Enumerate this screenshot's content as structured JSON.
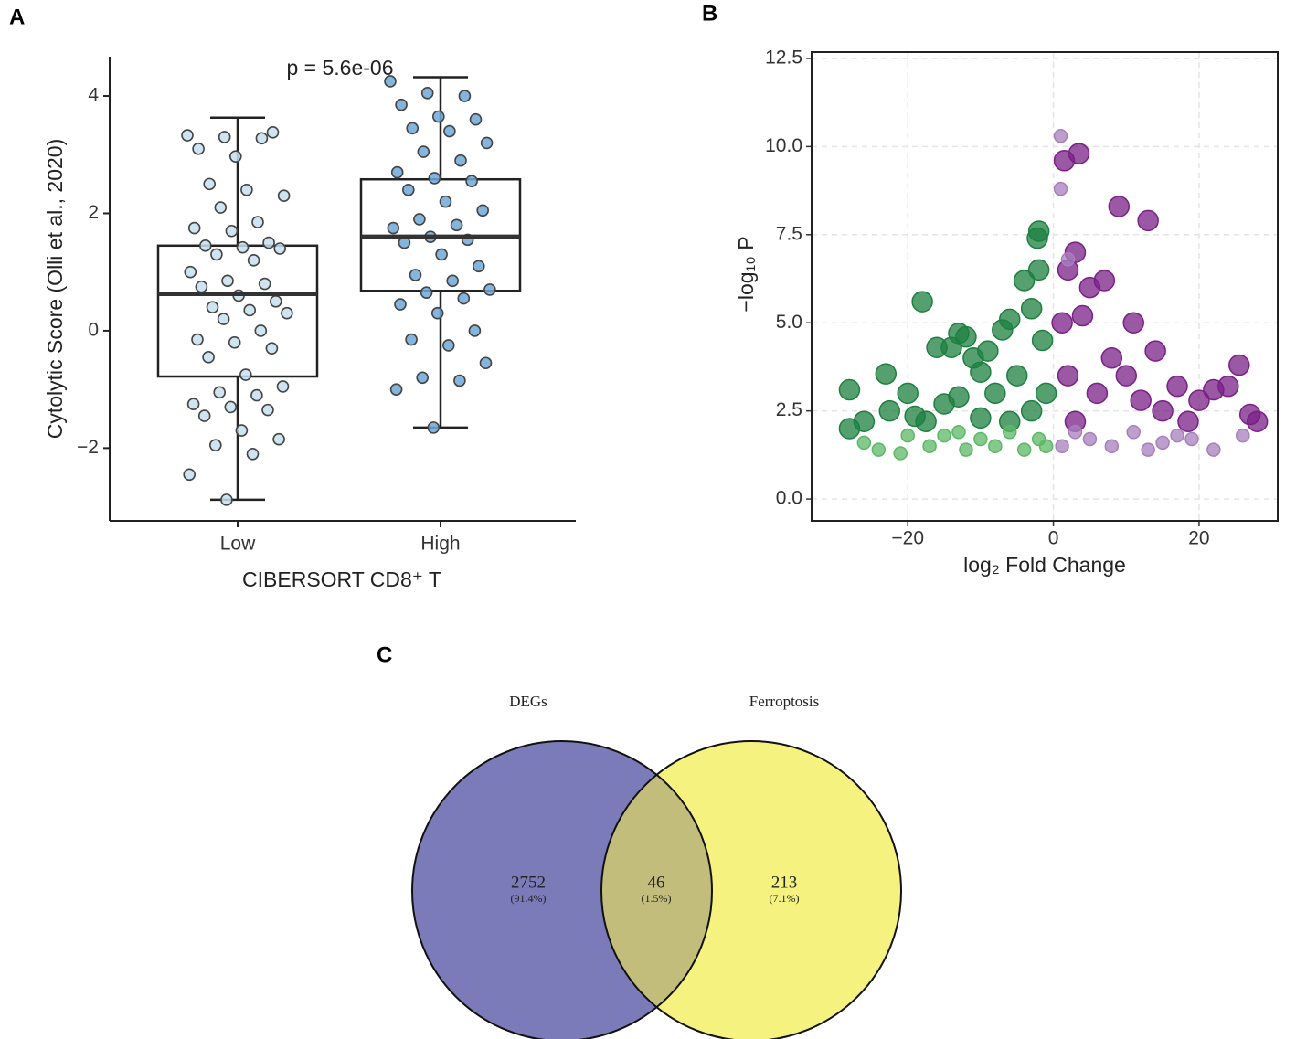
{
  "chart_data": [
    {
      "type": "box",
      "panel": "A",
      "annotation": "p = 5.6e-06",
      "ylabel": "Cytolytic Score (Olli et al., 2020)",
      "xlabel": "CIBERSORT CD8⁺ T",
      "categories": [
        "Low",
        "High"
      ],
      "colors": [
        "#c6e0ef",
        "#6ea8d8"
      ],
      "boxes": [
        {
          "min": -2.88,
          "q1": -0.78,
          "median": 0.63,
          "q3": 1.45,
          "max": 3.63
        },
        {
          "min": -1.65,
          "q1": 0.68,
          "median": 1.6,
          "q3": 2.58,
          "max": 4.32
        }
      ],
      "points": [
        [
          3.33,
          3.3,
          3.28,
          3.1,
          2.97,
          3.38,
          2.5,
          2.4,
          2.3,
          2.1,
          1.85,
          1.75,
          1.7,
          1.5,
          1.45,
          1.42,
          1.4,
          1.3,
          1.2,
          1.0,
          0.85,
          0.8,
          0.75,
          0.6,
          0.5,
          0.4,
          0.35,
          0.3,
          0.2,
          0.0,
          -0.15,
          -0.2,
          -0.3,
          -0.45,
          -0.75,
          -0.95,
          -1.05,
          -1.1,
          -1.25,
          -1.3,
          -1.35,
          -1.45,
          -1.7,
          -1.85,
          -1.95,
          -2.1,
          -2.45,
          -2.88
        ],
        [
          4.25,
          4.05,
          4.0,
          3.85,
          3.65,
          3.6,
          3.45,
          3.4,
          3.2,
          3.05,
          2.9,
          2.7,
          2.6,
          2.55,
          2.4,
          2.2,
          2.05,
          1.9,
          1.8,
          1.75,
          1.6,
          1.55,
          1.5,
          1.3,
          1.1,
          0.95,
          0.85,
          0.7,
          0.65,
          0.55,
          0.45,
          0.3,
          0.0,
          -0.15,
          -0.25,
          -0.55,
          -0.8,
          -0.85,
          -1.0,
          -1.65
        ]
      ],
      "ylim": [
        -3.24,
        4.67
      ],
      "yticks": [
        {
          "value": -2,
          "label": "−2"
        },
        0,
        2,
        4
      ]
    },
    {
      "type": "scatter",
      "panel": "B",
      "xlabel": "log₂ Fold Change",
      "ylabel": "−log₁₀ P",
      "grid": true,
      "xlim": [
        -33.2,
        30.8
      ],
      "xticks": [
        {
          "value": -20,
          "label": "−20"
        },
        0,
        20
      ],
      "ylim": [
        -0.62,
        12.68
      ],
      "yticks": [
        {
          "value": 0,
          "label": "0.0"
        },
        2.5,
        {
          "value": 5,
          "label": "5.0"
        },
        7.5,
        {
          "value": 10,
          "label": "10.0"
        },
        12.5
      ],
      "series": [
        {
          "color": "#1e8040",
          "x": [
            -28,
            -28,
            -26,
            -23,
            -22.5,
            -20,
            -19,
            -17.5,
            -18,
            -16,
            -15,
            -14,
            -13,
            -12,
            -13,
            -11,
            -10,
            -9,
            -8,
            -7,
            -6,
            -5,
            -4,
            -3,
            -2,
            -2.2,
            -2,
            -1.5,
            -1,
            -3,
            -6,
            -10
          ],
          "y": [
            2.0,
            3.1,
            2.2,
            3.55,
            2.5,
            3.0,
            2.35,
            2.2,
            5.6,
            4.3,
            2.7,
            4.3,
            4.7,
            4.6,
            2.9,
            4.0,
            3.6,
            4.2,
            3.0,
            4.8,
            5.1,
            3.5,
            6.2,
            5.4,
            7.6,
            7.4,
            6.5,
            4.5,
            3.0,
            2.5,
            2.2,
            2.3
          ]
        },
        {
          "color": "#5cb866",
          "x": [
            -26,
            -24,
            -21,
            -20,
            -17,
            -15,
            -12,
            -10,
            -8,
            -6,
            -4,
            -2,
            -1,
            -13
          ],
          "y": [
            1.6,
            1.4,
            1.3,
            1.8,
            1.5,
            1.8,
            1.4,
            1.7,
            1.5,
            1.9,
            1.4,
            1.7,
            1.5,
            1.9
          ]
        },
        {
          "color": "#7a2087",
          "x": [
            1.5,
            3.5,
            9,
            13,
            3,
            2,
            5,
            7,
            1.2,
            4,
            11,
            14,
            10,
            17,
            20,
            22,
            24,
            25.5,
            27,
            28,
            18.5,
            8,
            6,
            2,
            15,
            12,
            3
          ],
          "y": [
            9.6,
            9.8,
            8.3,
            7.9,
            7.0,
            6.5,
            6.0,
            6.2,
            5.0,
            5.2,
            5.0,
            4.2,
            3.5,
            3.2,
            2.8,
            3.1,
            3.2,
            3.8,
            2.4,
            2.2,
            2.2,
            4.0,
            3.0,
            3.5,
            2.5,
            2.8,
            2.2
          ]
        },
        {
          "color": "#a77fbd",
          "x": [
            1,
            1,
            2,
            5,
            8,
            11,
            15,
            19,
            22,
            26,
            1.2,
            3,
            13,
            17
          ],
          "y": [
            10.3,
            8.8,
            6.8,
            1.7,
            1.5,
            1.9,
            1.6,
            1.7,
            1.4,
            1.8,
            1.5,
            1.9,
            1.4,
            1.8
          ]
        }
      ]
    },
    {
      "type": "venn",
      "panel": "C",
      "sets": [
        {
          "name": "DEGs",
          "color": "#7b7bba",
          "name_color": "#4d4da6"
        },
        {
          "name": "Ferroptosis",
          "color": "#f5f27f",
          "name_color": "#9a9838"
        }
      ],
      "overlap_color": "#c2bd7a",
      "values": [
        2752,
        46,
        213
      ],
      "percents": [
        91.4,
        1.5,
        7.1
      ],
      "percent_labels": [
        "(91.4%)",
        "(1.5%)",
        "(7.1%)"
      ]
    }
  ]
}
